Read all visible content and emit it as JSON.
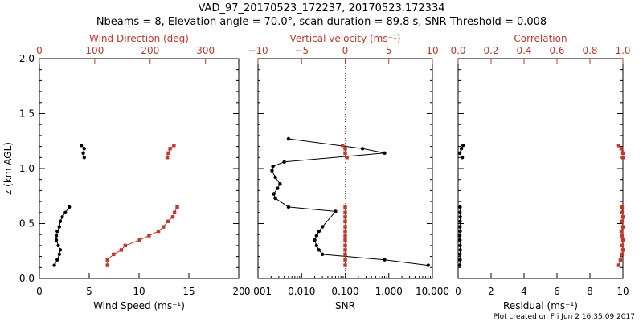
{
  "header": {
    "title": "VAD_97_20170523_172237, 20170523.172334",
    "subtitle": "Nbeams = 8, Elevation angle = 70.0°, scan duration = 89.8 s, SNR Threshold = 0.008"
  },
  "footer": {
    "plot_created": "Plot created on Fri Jun  2 16:35:09 2017"
  },
  "colors": {
    "black": "#000000",
    "red": "#c0392b"
  },
  "chart_data": [
    {
      "type": "line",
      "panel": "wind",
      "ylabel": "z (km AGL)",
      "ylim": [
        0,
        2
      ],
      "yticks": [
        "0.0",
        "0.5",
        "1.0",
        "1.5",
        "2.0"
      ],
      "bottom_axis": {
        "label": "Wind Speed (ms⁻¹)",
        "range": [
          0,
          20
        ],
        "ticks": [
          "0",
          "5",
          "10",
          "15",
          "20"
        ],
        "color": "#000000"
      },
      "top_axis": {
        "label": "Wind Direction (deg)",
        "range": [
          0,
          360
        ],
        "ticks": [
          "0",
          "100",
          "200",
          "300"
        ],
        "color": "#c0392b"
      },
      "series": [
        {
          "axis": "bottom",
          "color": "#000000",
          "segments": [
            {
              "x": [
                1.5,
                1.8,
                2.0,
                2.1,
                1.9,
                1.7,
                1.7,
                1.8,
                2.0,
                2.1,
                2.3,
                2.6,
                3.0
              ],
              "y": [
                0.12,
                0.17,
                0.22,
                0.26,
                0.3,
                0.35,
                0.39,
                0.43,
                0.47,
                0.52,
                0.56,
                0.6,
                0.65
              ]
            },
            {
              "x": [
                4.2,
                4.5,
                4.4,
                4.5
              ],
              "y": [
                1.21,
                1.18,
                1.14,
                1.1
              ]
            }
          ]
        },
        {
          "axis": "top",
          "color": "#c0392b",
          "segments": [
            {
              "x": [
                123,
                123,
                134,
                148,
                155,
                181,
                198,
                215,
                224,
                232,
                241,
                244,
                249
              ],
              "y": [
                0.12,
                0.17,
                0.22,
                0.26,
                0.3,
                0.35,
                0.39,
                0.43,
                0.47,
                0.52,
                0.56,
                0.6,
                0.65
              ]
            },
            {
              "x": [
                243,
                236,
                233,
                231
              ],
              "y": [
                1.21,
                1.18,
                1.14,
                1.1
              ]
            }
          ]
        }
      ]
    },
    {
      "type": "line",
      "panel": "snr",
      "ylim": [
        0,
        2
      ],
      "bottom_axis": {
        "label": "SNR",
        "scale": "log",
        "range": [
          0.001,
          10
        ],
        "ticks": [
          "0.001",
          "0.010",
          "0.100",
          "1.000",
          "10.000"
        ],
        "color": "#000000"
      },
      "top_axis": {
        "label": "Vertical velocity (ms⁻¹)",
        "range": [
          -10,
          10
        ],
        "ticks": [
          "−10",
          "−5",
          "0",
          "5",
          "10"
        ],
        "color": "#c0392b"
      },
      "reference_line": {
        "axis": "top",
        "value": 0,
        "style": "dotted",
        "color": "#c0392b"
      },
      "series": [
        {
          "axis": "bottom",
          "color": "#000000",
          "segments": [
            {
              "x": [
                8,
                0.8,
                0.03,
                0.025,
                0.022,
                0.02,
                0.022,
                0.025,
                0.03,
                0.06,
                0.005,
                0.0025,
                0.0023,
                0.0028,
                0.0032,
                0.0025,
                0.0021,
                0.0022,
                0.004,
                0.8,
                0.25,
                0.005
              ],
              "y": [
                0.12,
                0.17,
                0.22,
                0.26,
                0.3,
                0.35,
                0.39,
                0.43,
                0.47,
                0.61,
                0.65,
                0.73,
                0.77,
                0.82,
                0.86,
                0.92,
                0.98,
                1.02,
                1.06,
                1.14,
                1.18,
                1.27
              ]
            }
          ]
        },
        {
          "axis": "top",
          "color": "#c0392b",
          "segments": [
            {
              "x": [
                0,
                0,
                0,
                0,
                0,
                0,
                0,
                0,
                0,
                0,
                0,
                0,
                0
              ],
              "y": [
                0.12,
                0.17,
                0.22,
                0.26,
                0.3,
                0.35,
                0.39,
                0.43,
                0.47,
                0.52,
                0.56,
                0.6,
                0.65
              ]
            },
            {
              "x": [
                -0.3,
                0,
                0,
                0.2
              ],
              "y": [
                1.21,
                1.18,
                1.14,
                1.1
              ]
            }
          ]
        }
      ]
    },
    {
      "type": "line",
      "panel": "residual",
      "ylim": [
        0,
        2
      ],
      "bottom_axis": {
        "label": "Residual (ms⁻¹)",
        "range": [
          0,
          10
        ],
        "ticks": [
          "0",
          "2",
          "4",
          "6",
          "8",
          "10"
        ],
        "color": "#000000"
      },
      "top_axis": {
        "label": "Correlation",
        "range": [
          0,
          1
        ],
        "ticks": [
          "0.0",
          "0.2",
          "0.4",
          "0.6",
          "0.8",
          "1.0"
        ],
        "color": "#c0392b"
      },
      "series": [
        {
          "axis": "bottom",
          "color": "#000000",
          "segments": [
            {
              "x": [
                0.1,
                0.12,
                0.11,
                0.13,
                0.12,
                0.11,
                0.1,
                0.12,
                0.11,
                0.12,
                0.13,
                0.11,
                0.12
              ],
              "y": [
                0.12,
                0.17,
                0.22,
                0.26,
                0.3,
                0.35,
                0.39,
                0.43,
                0.47,
                0.52,
                0.56,
                0.6,
                0.65
              ]
            },
            {
              "x": [
                0.3,
                0.2,
                0.1,
                0.25
              ],
              "y": [
                1.21,
                1.18,
                1.14,
                1.1
              ]
            }
          ]
        },
        {
          "axis": "top",
          "color": "#c0392b",
          "segments": [
            {
              "x": [
                0.975,
                0.985,
                0.995,
                1.0,
                0.995,
                1.0,
                0.995,
                0.99,
                1.0,
                0.995,
                1.0,
                0.995,
                0.995
              ],
              "y": [
                0.12,
                0.17,
                0.22,
                0.26,
                0.3,
                0.35,
                0.39,
                0.43,
                0.47,
                0.52,
                0.56,
                0.6,
                0.65
              ]
            },
            {
              "x": [
                0.975,
                0.99,
                1.0,
                1.0
              ],
              "y": [
                1.21,
                1.18,
                1.14,
                1.1
              ]
            }
          ]
        }
      ]
    }
  ]
}
